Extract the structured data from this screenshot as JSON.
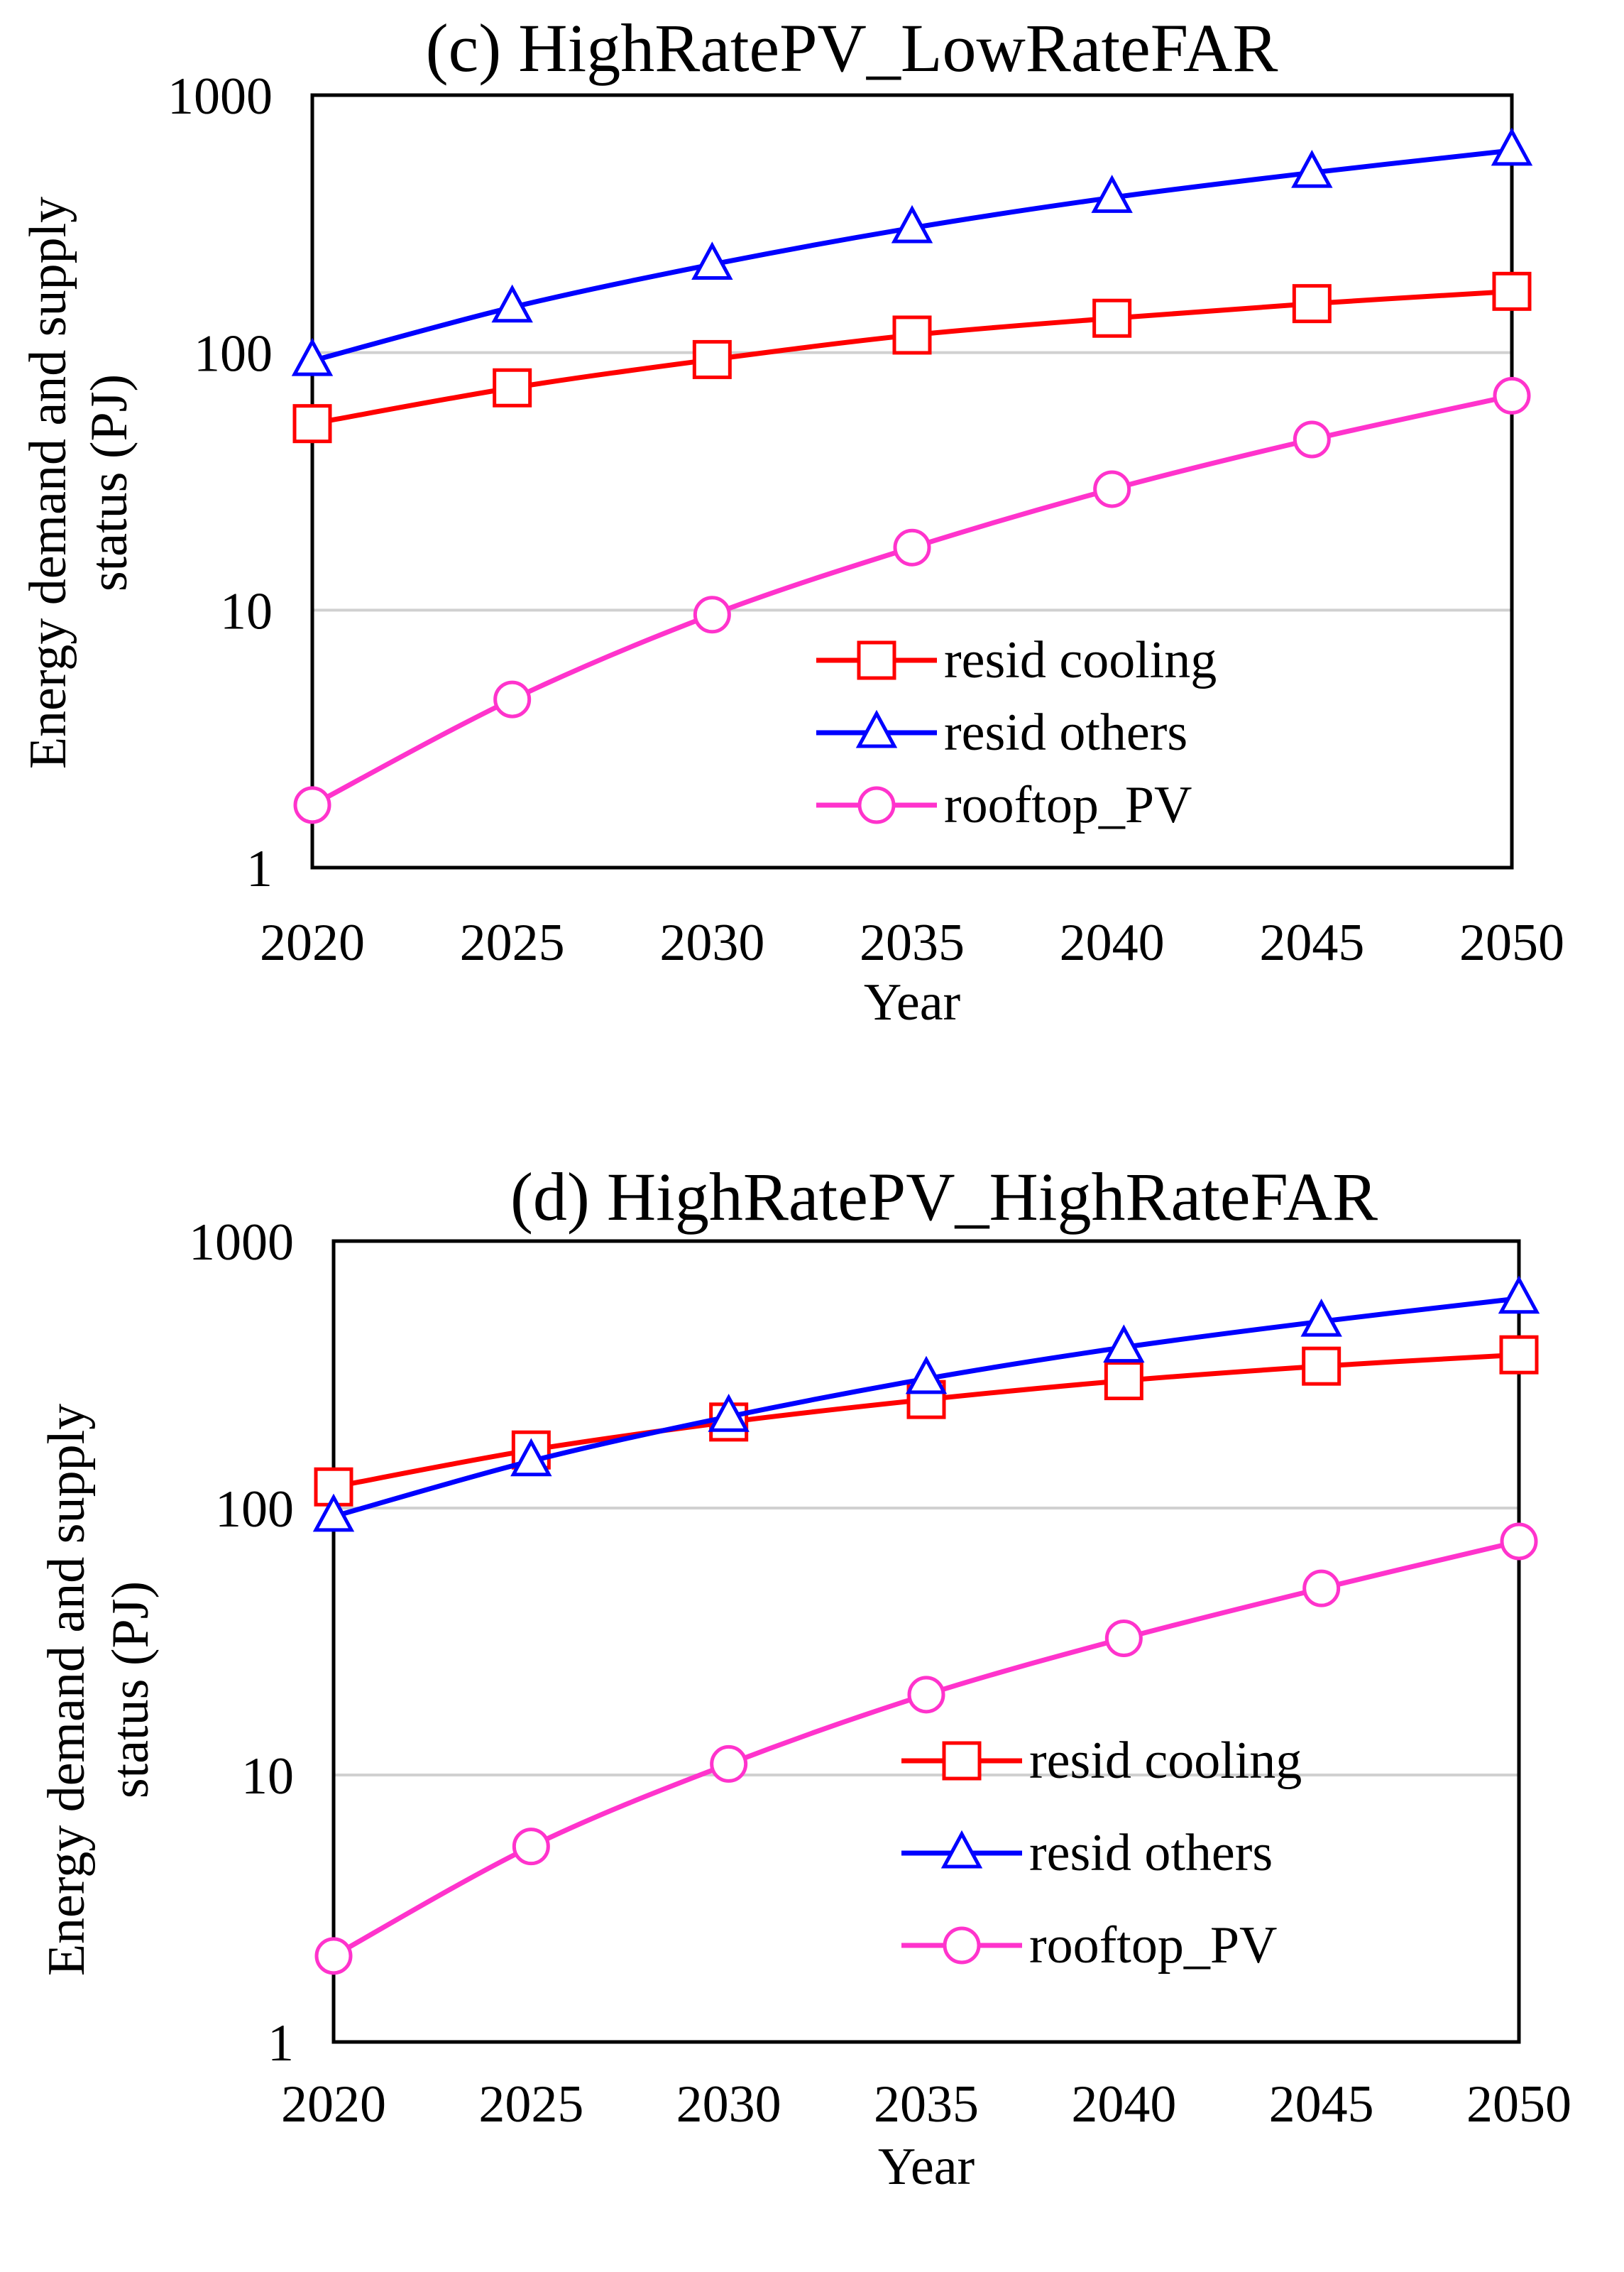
{
  "chart_data": [
    {
      "type": "line",
      "title": "(c) HighRatePV_LowRateFAR",
      "xlabel": "Year",
      "ylabel": "Energy demand and supply status (PJ)",
      "ylabel_lines": [
        "Energy demand and supply",
        "status (PJ)"
      ],
      "yscale": "log",
      "ylim": [
        1,
        1000
      ],
      "y_ticks": [
        "1",
        "10",
        "100",
        "1000"
      ],
      "x": [
        "2020",
        "2025",
        "2030",
        "2035",
        "2040",
        "2045",
        "2050"
      ],
      "grid": true,
      "legend_position": "lower-right",
      "series": [
        {
          "name": "resid cooling",
          "color": "#ff0000",
          "marker": "square",
          "values": [
            53,
            73,
            94,
            117,
            136,
            155,
            173
          ]
        },
        {
          "name": "resid others",
          "color": "#0000ff",
          "marker": "triangle",
          "values": [
            93,
            150,
            220,
            305,
            400,
            500,
            610
          ]
        },
        {
          "name": "rooftop_PV",
          "color": "#ff33cc",
          "marker": "circle",
          "values": [
            1.75,
            4.5,
            9.6,
            17.5,
            29.5,
            46,
            68
          ]
        }
      ]
    },
    {
      "type": "line",
      "title": "(d) HighRatePV_HighRateFAR",
      "xlabel": "Year",
      "ylabel": "Energy demand and supply status (PJ)",
      "ylabel_lines": [
        "Energy demand and supply",
        "status (PJ)"
      ],
      "yscale": "log",
      "ylim": [
        1,
        1000
      ],
      "y_ticks": [
        "1",
        "10",
        "100",
        "1000"
      ],
      "x": [
        "2020",
        "2025",
        "2030",
        "2035",
        "2040",
        "2045",
        "2050"
      ],
      "grid": true,
      "legend_position": "lower-right",
      "series": [
        {
          "name": "resid cooling",
          "color": "#ff0000",
          "marker": "square",
          "values": [
            120,
            165,
            210,
            255,
            300,
            340,
            375
          ]
        },
        {
          "name": "resid others",
          "color": "#0000ff",
          "marker": "triangle",
          "values": [
            93,
            150,
            220,
            305,
            400,
            500,
            610
          ]
        },
        {
          "name": "rooftop_PV",
          "color": "#ff33cc",
          "marker": "circle",
          "values": [
            2.1,
            5.4,
            11,
            20,
            32.5,
            50,
            75
          ]
        }
      ]
    }
  ]
}
